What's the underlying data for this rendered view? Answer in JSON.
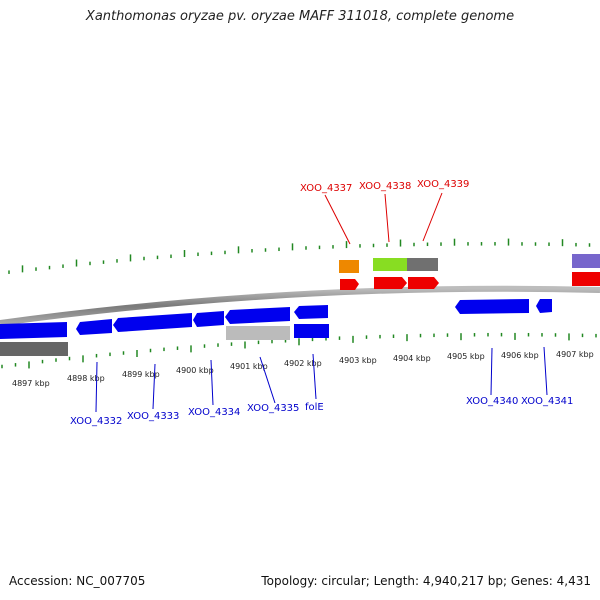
{
  "title": "Xanthomonas oryzae pv. oryzae MAFF 311018, complete genome",
  "footer": {
    "accession": "Accession: NC_007705",
    "summary": "Topology: circular; Length: 4,940,217 bp; Genes: 4,431"
  },
  "scale_labels": [
    "4897 kbp",
    "4898 kbp",
    "4899 kbp",
    "4900 kbp",
    "4901 kbp",
    "4902 kbp",
    "4903 kbp",
    "4904 kbp",
    "4905 kbp",
    "4906 kbp",
    "4907 kbp"
  ],
  "gene_labels_top": [
    {
      "text": "XOO_4337",
      "color": "#dd0000"
    },
    {
      "text": "XOO_4338",
      "color": "#dd0000"
    },
    {
      "text": "XOO_4339",
      "color": "#dd0000"
    }
  ],
  "gene_labels_bottom": [
    {
      "text": "XOO_4332",
      "color": "#0000cc"
    },
    {
      "text": "XOO_4333",
      "color": "#0000cc"
    },
    {
      "text": "XOO_4334",
      "color": "#0000cc"
    },
    {
      "text": "XOO_4335",
      "color": "#0000cc"
    },
    {
      "text": "folE",
      "color": "#0000cc"
    },
    {
      "text": "XOO_4340",
      "color": "#0000cc"
    },
    {
      "text": "XOO_4341",
      "color": "#0000cc"
    }
  ],
  "colors": {
    "forward_gene": "#ee0000",
    "reverse_gene": "#0000ee",
    "orange_feature": "#ee8800",
    "green_feature": "#88dd22",
    "gray_feature": "#707070",
    "light_gray_feature": "#bbbbbb",
    "purple_feature": "#7766cc",
    "tick": "#228822",
    "backbone": "#888888"
  }
}
